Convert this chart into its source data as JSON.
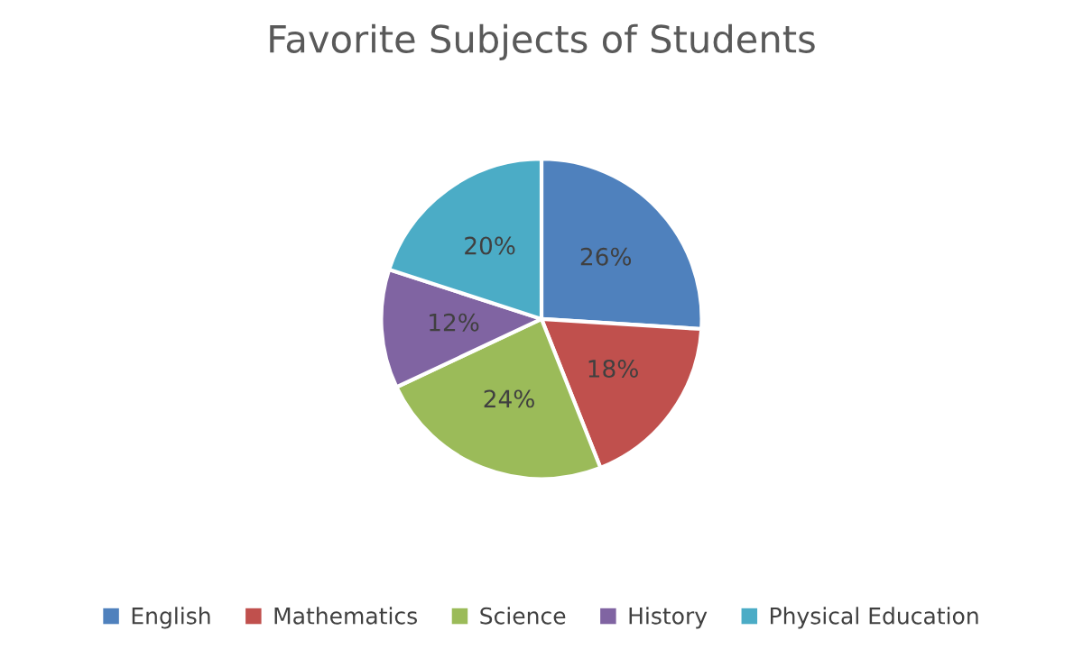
{
  "chart_data": {
    "type": "pie",
    "title": "Favorite Subjects of Students",
    "categories": [
      "English",
      "Mathematics",
      "Science",
      "History",
      "Physical Education"
    ],
    "values": [
      26,
      18,
      24,
      12,
      20
    ],
    "colors": [
      "#4f81bd",
      "#c0504d",
      "#9bbb59",
      "#8064a2",
      "#4bacc6"
    ],
    "value_labels": [
      "26%",
      "18%",
      "24%",
      "12%",
      "20%"
    ],
    "legend": "bottom"
  }
}
